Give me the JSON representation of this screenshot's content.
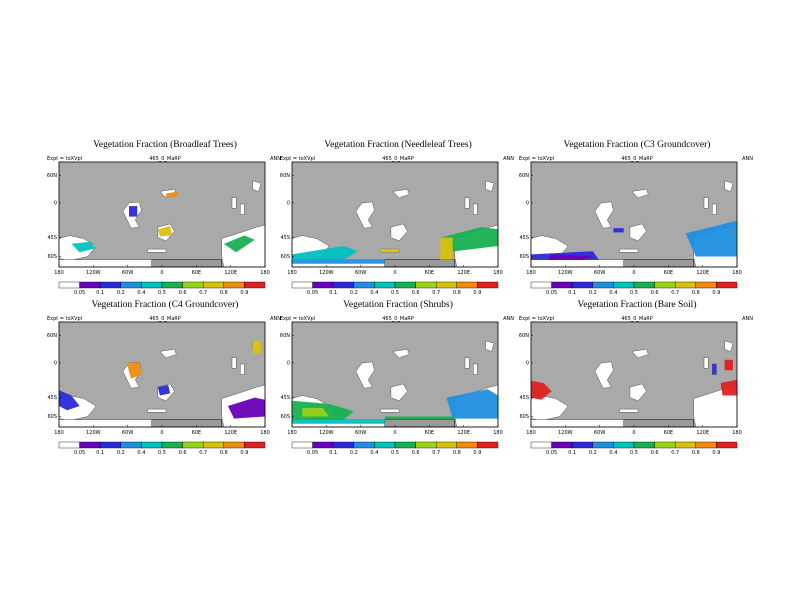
{
  "colorbar": {
    "colors": [
      "#ffffff",
      "#6a00b8",
      "#2a2ad8",
      "#1f8fe0",
      "#00c0c0",
      "#18b050",
      "#9ad21a",
      "#d8c010",
      "#f08a10",
      "#e02020"
    ],
    "labels": [
      "0.05",
      "0.1",
      "0.2",
      "0.4",
      "0.5",
      "0.6",
      "0.7",
      "0.8",
      "0.9"
    ]
  },
  "map": {
    "ocean_color": "#a9a9a9",
    "land_color": "#ffffff",
    "lat_labels": [
      "60N",
      "0",
      "45S",
      "60S"
    ],
    "lon_labels": [
      "180",
      "120W",
      "60W",
      "0",
      "60E",
      "120E",
      "180"
    ]
  },
  "panels": [
    {
      "title": "Vegetation Fraction (Broadleaf Trees)",
      "expt": "Expt = toXVpl",
      "run": "465_0_MaRP",
      "period": "ANN",
      "chart_data": {
        "type": "heatmap",
        "variable": "Broadleaf Trees",
        "levels": [
          0.05,
          0.1,
          0.2,
          0.4,
          0.5,
          0.6,
          0.7,
          0.8,
          0.9
        ],
        "dominant_values": [
          0.2,
          0.5,
          0.8,
          0.9
        ],
        "dominant_regions": [
          "central Africa",
          "tropical South America"
        ]
      }
    },
    {
      "title": "Vegetation Fraction (Needleleaf Trees)",
      "expt": "Expt = toXVpl",
      "run": "465_0_MaRP",
      "period": "ANN",
      "chart_data": {
        "type": "heatmap",
        "variable": "Needleleaf Trees",
        "levels": [
          0.05,
          0.1,
          0.2,
          0.4,
          0.5,
          0.6,
          0.7,
          0.8,
          0.9
        ],
        "dominant_values": [
          0.2,
          0.4,
          0.5,
          0.7
        ],
        "dominant_regions": [
          "southern high latitudes"
        ]
      }
    },
    {
      "title": "Vegetation Fraction (C3 Groundcover)",
      "expt": "Expt = toXVpl",
      "run": "465_0_MaRP",
      "period": "ANN",
      "chart_data": {
        "type": "heatmap",
        "variable": "C3 Groundcover",
        "levels": [
          0.05,
          0.1,
          0.2,
          0.4,
          0.5,
          0.6,
          0.7,
          0.8,
          0.9
        ],
        "dominant_values": [
          0.1,
          0.2,
          0.4
        ],
        "dominant_regions": [
          "southern mid latitudes"
        ]
      }
    },
    {
      "title": "Vegetation Fraction (C4 Groundcover)",
      "expt": "Expt = toXVpl",
      "run": "465_0_MaRP",
      "period": "ANN",
      "chart_data": {
        "type": "heatmap",
        "variable": "C4 Groundcover",
        "levels": [
          0.05,
          0.1,
          0.2,
          0.4,
          0.5,
          0.6,
          0.7,
          0.8,
          0.9
        ],
        "dominant_values": [
          0.1,
          0.2,
          0.4,
          0.8
        ],
        "dominant_regions": [
          "Africa",
          "South America"
        ]
      }
    },
    {
      "title": "Vegetation Fraction (Shrubs)",
      "expt": "Expt = toXVpl",
      "run": "465_0_MaRP",
      "period": "ANN",
      "chart_data": {
        "type": "heatmap",
        "variable": "Shrubs",
        "levels": [
          0.05,
          0.1,
          0.2,
          0.4,
          0.5,
          0.6,
          0.7,
          0.8,
          0.9
        ],
        "dominant_values": [
          0.2,
          0.4,
          0.5,
          0.6,
          0.7
        ],
        "dominant_regions": [
          "southern high latitudes"
        ]
      }
    },
    {
      "title": "Vegetation Fraction (Bare Soil)",
      "expt": "Expt = toXVpl",
      "run": "465_0_MaRP",
      "period": "ANN",
      "chart_data": {
        "type": "heatmap",
        "variable": "Bare Soil",
        "levels": [
          0.05,
          0.1,
          0.2,
          0.4,
          0.5,
          0.6,
          0.7,
          0.8,
          0.9
        ],
        "dominant_values": [
          0.9
        ],
        "dominant_regions": [
          "western and eastern subtropics"
        ]
      }
    }
  ]
}
